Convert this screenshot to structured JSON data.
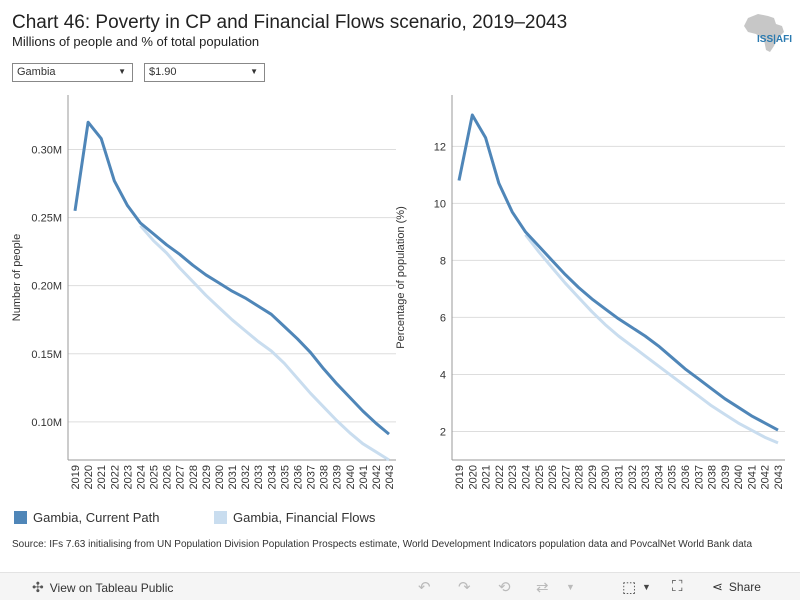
{
  "header": {
    "title": "Chart 46: Poverty in CP and Financial Flows scenario, 2019–2043",
    "subtitle": "Millions of people and % of total population",
    "logo_text": "ISS|AFI"
  },
  "filters": {
    "country": "Gambia",
    "threshold": "$1.90"
  },
  "colors": {
    "current_path": "#4f86b8",
    "financial_flows": "#c9ddef",
    "grid": "#dddddd",
    "axis": "#999999"
  },
  "legend": {
    "items": [
      "Gambia, Current Path",
      "Gambia, Financial Flows"
    ]
  },
  "source": "Source: IFs 7.63 initialising from UN Population Division Population Prospects estimate, World Development Indicators population data and PovcalNet World Bank data",
  "footer": {
    "view_label": "View on Tableau Public",
    "share_label": "Share"
  },
  "chart_data": [
    {
      "type": "line",
      "title": "",
      "xlabel": "",
      "ylabel": "Number of people",
      "x": [
        "2019",
        "2020",
        "2021",
        "2022",
        "2023",
        "2024",
        "2025",
        "2026",
        "2027",
        "2028",
        "2029",
        "2030",
        "2031",
        "2032",
        "2033",
        "2034",
        "2035",
        "2036",
        "2037",
        "2038",
        "2039",
        "2040",
        "2041",
        "2042",
        "2043"
      ],
      "ylim": [
        0.072,
        0.34
      ],
      "yticks": [
        0.1,
        0.15,
        0.2,
        0.25,
        0.3
      ],
      "ytick_labels": [
        "0.10M",
        "0.15M",
        "0.20M",
        "0.25M",
        "0.30M"
      ],
      "series": [
        {
          "name": "Gambia, Current Path",
          "values": [
            0.255,
            0.32,
            0.308,
            0.277,
            0.259,
            0.246,
            0.238,
            0.23,
            0.223,
            0.215,
            0.208,
            0.202,
            0.196,
            0.191,
            0.185,
            0.179,
            0.17,
            0.161,
            0.151,
            0.139,
            0.128,
            0.118,
            0.108,
            0.099,
            0.091
          ]
        },
        {
          "name": "Gambia, Financial Flows",
          "values": [
            null,
            null,
            null,
            null,
            null,
            0.244,
            0.233,
            0.224,
            0.213,
            0.203,
            0.193,
            0.184,
            0.175,
            0.167,
            0.159,
            0.152,
            0.143,
            0.132,
            0.121,
            0.111,
            0.101,
            0.092,
            0.084,
            0.078,
            0.072
          ]
        }
      ]
    },
    {
      "type": "line",
      "title": "",
      "xlabel": "",
      "ylabel": "Percentage of population (%)",
      "x": [
        "2019",
        "2020",
        "2021",
        "2022",
        "2023",
        "2024",
        "2025",
        "2026",
        "2027",
        "2028",
        "2029",
        "2030",
        "2031",
        "2032",
        "2033",
        "2034",
        "2035",
        "2036",
        "2037",
        "2038",
        "2039",
        "2040",
        "2041",
        "2042",
        "2043"
      ],
      "ylim": [
        1.0,
        13.8
      ],
      "yticks": [
        2,
        4,
        6,
        8,
        10,
        12
      ],
      "ytick_labels": [
        "2",
        "4",
        "6",
        "8",
        "10",
        "12"
      ],
      "series": [
        {
          "name": "Gambia, Current Path",
          "values": [
            10.8,
            13.1,
            12.3,
            10.7,
            9.7,
            9.0,
            8.5,
            8.0,
            7.5,
            7.05,
            6.65,
            6.3,
            5.95,
            5.65,
            5.35,
            5.0,
            4.6,
            4.2,
            3.85,
            3.5,
            3.15,
            2.85,
            2.55,
            2.3,
            2.05
          ]
        },
        {
          "name": "Gambia, Financial Flows",
          "values": [
            null,
            null,
            null,
            null,
            null,
            8.9,
            8.3,
            7.75,
            7.2,
            6.7,
            6.2,
            5.75,
            5.35,
            5.0,
            4.65,
            4.3,
            3.95,
            3.6,
            3.25,
            2.9,
            2.6,
            2.3,
            2.05,
            1.8,
            1.6
          ]
        }
      ]
    }
  ]
}
